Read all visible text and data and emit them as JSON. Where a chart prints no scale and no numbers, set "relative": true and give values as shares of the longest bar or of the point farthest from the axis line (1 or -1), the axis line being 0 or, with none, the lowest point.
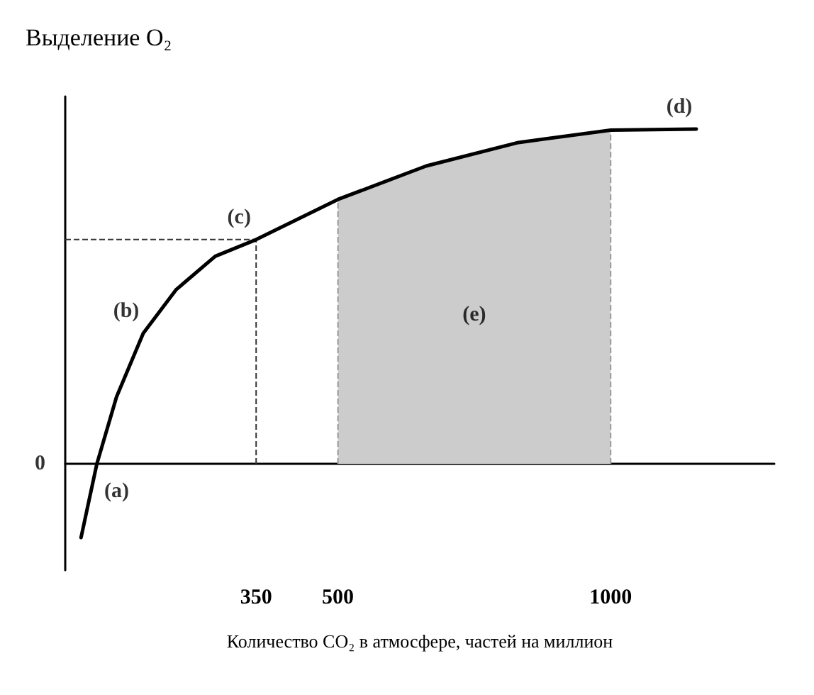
{
  "chart_data": {
    "type": "line",
    "relative": true,
    "ylabel": "Выделение O₂",
    "xlabel": "Количество CO₂ в атмосфере, частей на миллион",
    "x": [
      29,
      58,
      94,
      143,
      203,
      275,
      350,
      500,
      662,
      831,
      1000,
      1157
    ],
    "series": [
      {
        "color": "#000000",
        "values": [
          -0.22,
          0,
          0.2,
          0.39,
          0.52,
          0.62,
          0.67,
          0.79,
          0.89,
          0.96,
          0.997,
          1.0
        ]
      }
    ],
    "xlim": [
      0,
      1300
    ],
    "xticks": [
      350,
      500,
      1000
    ],
    "grid": false,
    "marker": "none",
    "line_style": "solid",
    "ref_lines": [
      {
        "axis": "x",
        "value": 350,
        "line_style": "dashed",
        "color": "#333333"
      },
      {
        "axis": "y",
        "value": 0.67,
        "line_style": "dashed",
        "color": "#333333"
      },
      {
        "axis": "x",
        "value": 500,
        "line_style": "dashed",
        "color": "#999999"
      },
      {
        "axis": "x",
        "value": 1000,
        "line_style": "dashed",
        "color": "#999999"
      }
    ],
    "bands": [
      {
        "axis": "x",
        "from": 500,
        "to": 1000,
        "color": "#cccccc",
        "label": "(e)"
      }
    ],
    "annotations": [
      "0",
      {
        "text": "(a)",
        "x": 58,
        "y": 0
      },
      {
        "text": "(b)",
        "x": 143,
        "y": 0.39
      },
      {
        "text": "(c)",
        "x": 350,
        "y": 0.67
      },
      {
        "text": "(d)",
        "x": 1157,
        "y": 1.0
      }
    ]
  }
}
